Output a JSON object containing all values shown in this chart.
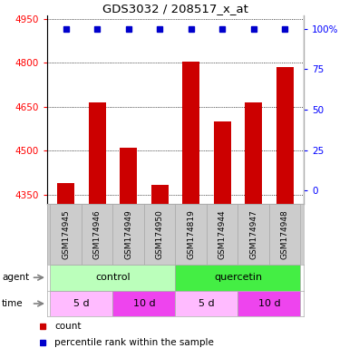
{
  "title": "GDS3032 / 208517_x_at",
  "samples": [
    "GSM174945",
    "GSM174946",
    "GSM174949",
    "GSM174950",
    "GSM174819",
    "GSM174944",
    "GSM174947",
    "GSM174948"
  ],
  "counts": [
    4390,
    4665,
    4510,
    4385,
    4805,
    4600,
    4665,
    4785
  ],
  "percentile_ranks": [
    100,
    100,
    100,
    100,
    100,
    100,
    100,
    100
  ],
  "ylim_left": [
    4320,
    4960
  ],
  "ylim_right": [
    -8,
    108
  ],
  "yticks_left": [
    4350,
    4500,
    4650,
    4800,
    4950
  ],
  "yticks_right": [
    0,
    25,
    50,
    75,
    100
  ],
  "bar_color": "#cc0000",
  "dot_color": "#0000cc",
  "agent_groups": [
    {
      "label": "control",
      "start": 0,
      "end": 4,
      "color": "#bbffbb"
    },
    {
      "label": "quercetin",
      "start": 4,
      "end": 8,
      "color": "#44ee44"
    }
  ],
  "time_groups": [
    {
      "label": "5 d",
      "start": 0,
      "end": 2,
      "color": "#ffbbff"
    },
    {
      "label": "10 d",
      "start": 2,
      "end": 4,
      "color": "#ee44ee"
    },
    {
      "label": "5 d",
      "start": 4,
      "end": 6,
      "color": "#ffbbff"
    },
    {
      "label": "10 d",
      "start": 6,
      "end": 8,
      "color": "#ee44ee"
    }
  ],
  "legend_count_color": "#cc0000",
  "legend_pct_color": "#0000cc",
  "background_color": "#ffffff",
  "sample_bg_color": "#cccccc",
  "edge_color": "#aaaaaa"
}
